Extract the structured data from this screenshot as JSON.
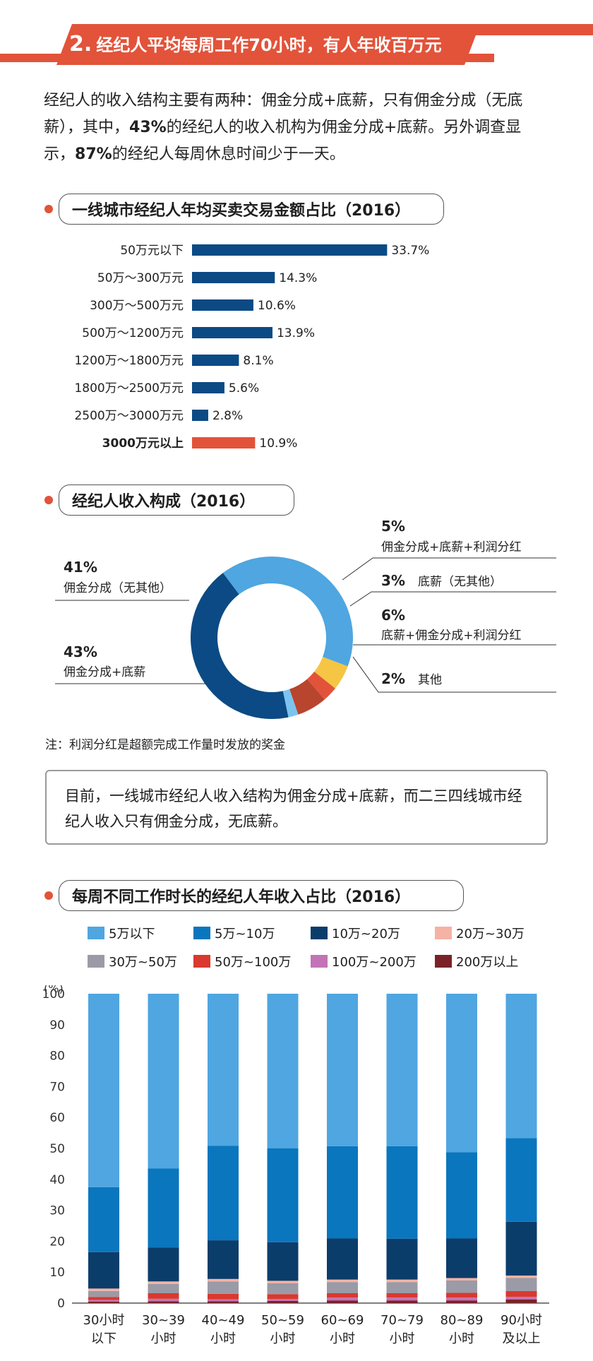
{
  "section": {
    "number": "2.",
    "title": "经纪人平均每周工作70小时，有人年收百万元"
  },
  "intro": {
    "p1": "经纪人的收入结构主要有两种：佣金分成+底薪，只有佣金分成（无底薪），其中，",
    "pct1": "43%",
    "p2": "的经纪人的收入机构为佣金分成+底薪。另外调查显示，",
    "pct2": "87%",
    "p3": "的经纪人每周休息时间少于一天。"
  },
  "note": "注：利润分红是超额完成工作量时发放的奖金",
  "callout": "目前，一线城市经纪人收入结构为佣金分成+底薪，而二三四线城市经纪人收入只有佣金分成，无底薪。",
  "chart_data": [
    {
      "type": "bar",
      "orientation": "horizontal",
      "title": "一线城市经纪人年均买卖交易金额占比（2016）",
      "categories": [
        "50万元以下",
        "50万～300万元",
        "300万～500万元",
        "500万～1200万元",
        "1200万～1800万元",
        "1800万～2500万元",
        "2500万～3000万元",
        "3000万元以上"
      ],
      "values": [
        33.7,
        14.3,
        10.6,
        13.9,
        8.1,
        5.6,
        2.8,
        10.9
      ],
      "value_labels": [
        "33.7%",
        "14.3%",
        "10.6%",
        "13.9%",
        "8.1%",
        "5.6%",
        "2.8%",
        "10.9%"
      ],
      "highlight_index": 7,
      "colors": {
        "normal": "#0b4a85",
        "highlight": "#e2533a"
      }
    },
    {
      "type": "pie",
      "variant": "donut",
      "title": "经纪人收入构成（2016）",
      "slices": [
        {
          "name": "佣金分成（无其他）",
          "value": 41,
          "label": "41%",
          "color": "#4fa6e0"
        },
        {
          "name": "佣金分成+底薪+利润分红",
          "value": 5,
          "label": "5%",
          "color": "#f5c543"
        },
        {
          "name": "底薪（无其他）",
          "value": 3,
          "label": "3%",
          "color": "#e2533a"
        },
        {
          "name": "底薪+佣金分成+利润分红",
          "value": 6,
          "label": "6%",
          "color": "#b8452e"
        },
        {
          "name": "其他",
          "value": 2,
          "label": "2%",
          "color": "#7cc4f0"
        },
        {
          "name": "佣金分成+底薪",
          "value": 43,
          "label": "43%",
          "color": "#0b4a85"
        }
      ]
    },
    {
      "type": "bar",
      "variant": "stacked",
      "title": "每周不同工作时长的经纪人年收入占比（2016）",
      "ylabel": "(%)",
      "ylim": [
        0,
        100
      ],
      "yticks": [
        0,
        10,
        20,
        30,
        40,
        50,
        60,
        70,
        80,
        90,
        100
      ],
      "categories": [
        {
          "line1": "30小时",
          "line2": "以下"
        },
        {
          "line1": "30~39",
          "line2": "小时"
        },
        {
          "line1": "40~49",
          "line2": "小时"
        },
        {
          "line1": "50~59",
          "line2": "小时"
        },
        {
          "line1": "60~69",
          "line2": "小时"
        },
        {
          "line1": "70~79",
          "line2": "小时"
        },
        {
          "line1": "80~89",
          "line2": "小时"
        },
        {
          "line1": "90小时",
          "line2": "及以上"
        }
      ],
      "series": [
        {
          "name": "5万以下",
          "color": "#4fa6e0",
          "values": [
            62.5,
            56.5,
            49.2,
            50.0,
            49.3,
            49.3,
            51.2,
            46.7
          ]
        },
        {
          "name": "5万~10万",
          "color": "#0a76bd",
          "values": [
            21.0,
            25.5,
            30.5,
            30.3,
            29.8,
            29.9,
            27.9,
            27.0
          ]
        },
        {
          "name": "10万~20万",
          "color": "#0b3d6b",
          "values": [
            11.8,
            11.0,
            12.5,
            12.5,
            13.3,
            13.2,
            12.8,
            17.4
          ]
        },
        {
          "name": "20万~30万",
          "color": "#f4b3a4",
          "values": [
            0.8,
            0.8,
            0.8,
            0.8,
            0.8,
            0.8,
            0.8,
            0.8
          ]
        },
        {
          "name": "30万~50万",
          "color": "#9a9ba6",
          "values": [
            1.9,
            3.0,
            4.0,
            3.5,
            3.6,
            3.6,
            4.0,
            4.2
          ]
        },
        {
          "name": "50万~100万",
          "color": "#d9392e",
          "values": [
            1.0,
            1.8,
            1.8,
            1.6,
            1.4,
            1.4,
            1.5,
            1.9
          ]
        },
        {
          "name": "100万~200万",
          "color": "#c374b6",
          "values": [
            0.5,
            0.8,
            0.6,
            0.6,
            1.0,
            1.0,
            1.0,
            0.8
          ]
        },
        {
          "name": "200万以上",
          "color": "#7a2227",
          "values": [
            0.5,
            0.6,
            0.6,
            0.7,
            0.8,
            0.8,
            0.8,
            1.2
          ]
        }
      ]
    }
  ]
}
